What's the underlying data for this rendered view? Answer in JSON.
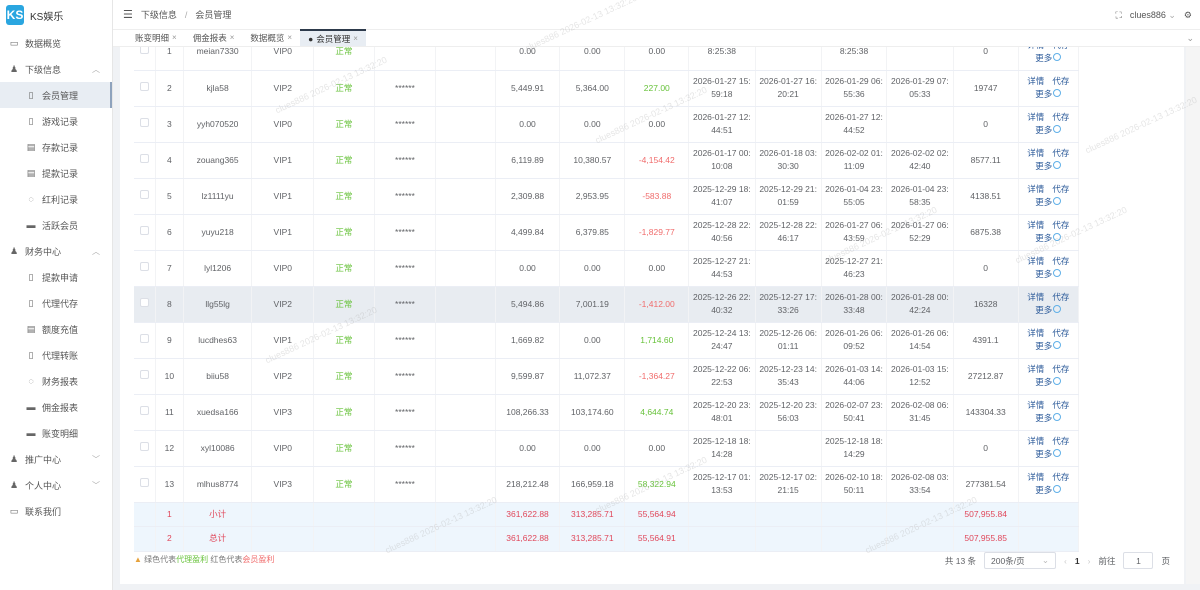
{
  "app": {
    "logo": "KS",
    "title": "KS娱乐"
  },
  "sidebar": {
    "items": [
      {
        "label": "数据概览",
        "icon": "monitor-icon",
        "level": 0
      },
      {
        "label": "下级信息",
        "icon": "user-icon",
        "level": 0,
        "expanded": true
      },
      {
        "label": "会员管理",
        "icon": "document-icon",
        "level": 1,
        "active": true
      },
      {
        "label": "游戏记录",
        "icon": "document-icon",
        "level": 1
      },
      {
        "label": "存款记录",
        "icon": "calendar-icon",
        "level": 1
      },
      {
        "label": "提款记录",
        "icon": "calendar-icon",
        "level": 1
      },
      {
        "label": "红利记录",
        "icon": "gift-icon",
        "level": 1
      },
      {
        "label": "活跃会员",
        "icon": "card-icon",
        "level": 1
      },
      {
        "label": "财务中心",
        "icon": "user-icon",
        "level": 0,
        "expanded": true
      },
      {
        "label": "提款申请",
        "icon": "document-icon",
        "level": 1
      },
      {
        "label": "代理代存",
        "icon": "document-icon",
        "level": 1
      },
      {
        "label": "额度充值",
        "icon": "calendar-icon",
        "level": 1
      },
      {
        "label": "代理转账",
        "icon": "document-icon",
        "level": 1
      },
      {
        "label": "财务报表",
        "icon": "gift-icon",
        "level": 1
      },
      {
        "label": "佣金报表",
        "icon": "card-icon",
        "level": 1
      },
      {
        "label": "账变明细",
        "icon": "card-icon",
        "level": 1
      },
      {
        "label": "推广中心",
        "icon": "user-icon",
        "level": 0,
        "expanded": false
      },
      {
        "label": "个人中心",
        "icon": "user-icon",
        "level": 0,
        "expanded": false
      },
      {
        "label": "联系我们",
        "icon": "monitor-icon",
        "level": 0
      }
    ]
  },
  "header": {
    "breadcrumb": [
      "下级信息",
      "会员管理"
    ],
    "separator": "/",
    "user": "clues886"
  },
  "tabs": [
    {
      "label": "账变明细"
    },
    {
      "label": "佣金报表"
    },
    {
      "label": "数据概览"
    },
    {
      "label": "会员管理",
      "active": true
    }
  ],
  "watermark": "clues886 2026-02-13 13:32:20",
  "table": {
    "rows": [
      {
        "no": "1",
        "user": "meian7330",
        "vip": "VIP0",
        "status": "正常",
        "pwd": "",
        "a": "0.00",
        "b": "0.00",
        "c": "0.00",
        "t1": "8:25:38",
        "t2": "",
        "t3": "8:25:38",
        "t4": "",
        "v": "0"
      },
      {
        "no": "2",
        "user": "kjla58",
        "vip": "VIP2",
        "status": "正常",
        "pwd": "******",
        "a": "5,449.91",
        "b": "5,364.00",
        "c": "227.00",
        "t1": "2026-01-27 15:59:18",
        "t2": "2026-01-27 16:20:21",
        "t3": "2026-01-29 06:55:36",
        "t4": "2026-01-29 07:05:33",
        "v": "19747"
      },
      {
        "no": "3",
        "user": "yyh070520",
        "vip": "VIP0",
        "status": "正常",
        "pwd": "******",
        "a": "0.00",
        "b": "0.00",
        "c": "0.00",
        "t1": "2026-01-27 12:44:51",
        "t2": "",
        "t3": "2026-01-27 12:44:52",
        "t4": "",
        "v": "0"
      },
      {
        "no": "4",
        "user": "zouang365",
        "vip": "VIP1",
        "status": "正常",
        "pwd": "******",
        "a": "6,119.89",
        "b": "10,380.57",
        "c": "-4,154.42",
        "t1": "2026-01-17 00:10:08",
        "t2": "2026-01-18 03:30:30",
        "t3": "2026-02-02 01:11:09",
        "t4": "2026-02-02 02:42:40",
        "v": "8577.11"
      },
      {
        "no": "5",
        "user": "lz1111yu",
        "vip": "VIP1",
        "status": "正常",
        "pwd": "******",
        "a": "2,309.88",
        "b": "2,953.95",
        "c": "-583.88",
        "t1": "2025-12-29 18:41:07",
        "t2": "2025-12-29 21:01:59",
        "t3": "2026-01-04 23:55:05",
        "t4": "2026-01-04 23:58:35",
        "v": "4138.51"
      },
      {
        "no": "6",
        "user": "yuyu218",
        "vip": "VIP1",
        "status": "正常",
        "pwd": "******",
        "a": "4,499.84",
        "b": "6,379.85",
        "c": "-1,829.77",
        "t1": "2025-12-28 22:40:56",
        "t2": "2025-12-28 22:46:17",
        "t3": "2026-01-27 06:43:59",
        "t4": "2026-01-27 06:52:29",
        "v": "6875.38"
      },
      {
        "no": "7",
        "user": "lyl1206",
        "vip": "VIP0",
        "status": "正常",
        "pwd": "******",
        "a": "0.00",
        "b": "0.00",
        "c": "0.00",
        "t1": "2025-12-27 21:44:53",
        "t2": "",
        "t3": "2025-12-27 21:46:23",
        "t4": "",
        "v": "0"
      },
      {
        "no": "8",
        "user": "llg55lg",
        "vip": "VIP2",
        "status": "正常",
        "pwd": "******",
        "a": "5,494.86",
        "b": "7,001.19",
        "c": "-1,412.00",
        "t1": "2025-12-26 22:40:32",
        "t2": "2025-12-27 17:33:26",
        "t3": "2026-01-28 00:33:48",
        "t4": "2026-01-28 00:42:24",
        "v": "16328",
        "hover": true
      },
      {
        "no": "9",
        "user": "lucdhes63",
        "vip": "VIP1",
        "status": "正常",
        "pwd": "******",
        "a": "1,669.82",
        "b": "0.00",
        "c": "1,714.60",
        "t1": "2025-12-24 13:24:47",
        "t2": "2025-12-26 06:01:11",
        "t3": "2026-01-26 06:09:52",
        "t4": "2026-01-26 06:14:54",
        "v": "4391.1"
      },
      {
        "no": "10",
        "user": "biiu58",
        "vip": "VIP2",
        "status": "正常",
        "pwd": "******",
        "a": "9,599.87",
        "b": "11,072.37",
        "c": "-1,364.27",
        "t1": "2025-12-22 06:22:53",
        "t2": "2025-12-23 14:35:43",
        "t3": "2026-01-03 14:44:06",
        "t4": "2026-01-03 15:12:52",
        "v": "27212.87"
      },
      {
        "no": "11",
        "user": "xuedsa166",
        "vip": "VIP3",
        "status": "正常",
        "pwd": "******",
        "a": "108,266.33",
        "b": "103,174.60",
        "c": "4,644.74",
        "t1": "2025-12-20 23:48:01",
        "t2": "2025-12-20 23:56:03",
        "t3": "2026-02-07 23:50:41",
        "t4": "2026-02-08 06:31:45",
        "v": "143304.33"
      },
      {
        "no": "12",
        "user": "xyl10086",
        "vip": "VIP0",
        "status": "正常",
        "pwd": "******",
        "a": "0.00",
        "b": "0.00",
        "c": "0.00",
        "t1": "2025-12-18 18:14:28",
        "t2": "",
        "t3": "2025-12-18 18:14:29",
        "t4": "",
        "v": "0"
      },
      {
        "no": "13",
        "user": "mlhus8774",
        "vip": "VIP3",
        "status": "正常",
        "pwd": "******",
        "a": "218,212.48",
        "b": "166,959.18",
        "c": "58,322.94",
        "t1": "2025-12-17 01:13:53",
        "t2": "2025-12-17 02:21:15",
        "t3": "2026-02-10 18:50:11",
        "t4": "2026-02-08 03:33:54",
        "v": "277381.54"
      }
    ],
    "summary": [
      {
        "no": "1",
        "label": "小计",
        "a": "361,622.88",
        "b": "313,285.71",
        "c": "55,564.94",
        "v": "507,955.84"
      },
      {
        "no": "2",
        "label": "总计",
        "a": "361,622.88",
        "b": "313,285.71",
        "c": "55,564.91",
        "v": "507,955.85"
      }
    ],
    "actions": {
      "detail": "详情",
      "deposit": "代存",
      "more": "更多"
    }
  },
  "legend": {
    "p1": "绿色代表",
    "g": "代理盈利",
    "p2": " 红色代表",
    "r": "会员盈利"
  },
  "pager": {
    "total": "共 13 条",
    "size": "200条/页",
    "page": "1",
    "goto": "前往",
    "goto_value": "1",
    "unit": "页"
  },
  "colors": {
    "profit_green": "#67c23a",
    "loss_red": "#f06c6c",
    "summary_bg": "#eef6fd"
  }
}
